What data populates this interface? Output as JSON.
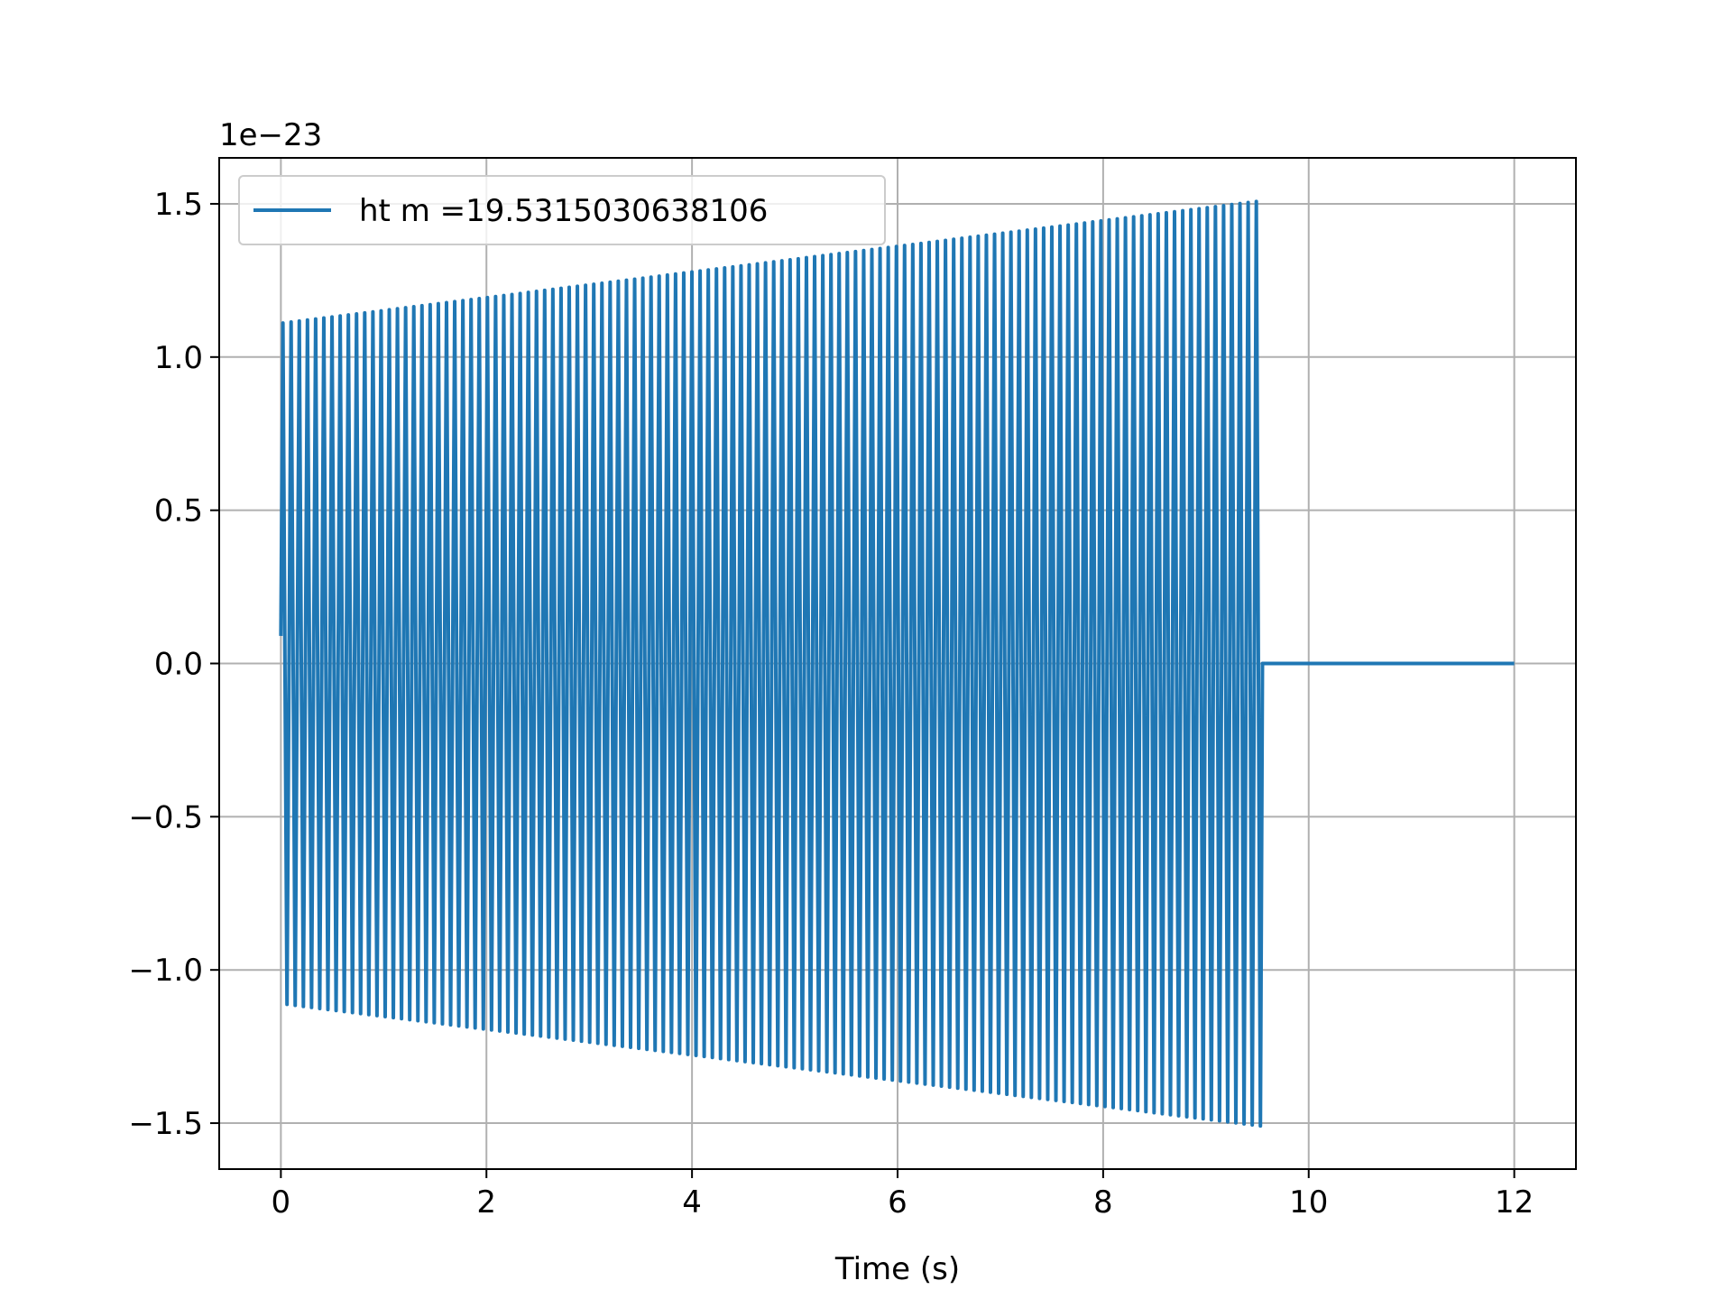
{
  "chart_data": {
    "type": "line",
    "title": "",
    "xlabel": "Time (s)",
    "ylabel": "",
    "y_offset_label": "1e−23",
    "xlim": [
      -0.6,
      12.6
    ],
    "ylim": [
      -1.65,
      1.65
    ],
    "xticks": [
      0,
      2,
      4,
      6,
      8,
      10,
      12
    ],
    "xtick_labels": [
      "0",
      "2",
      "4",
      "6",
      "8",
      "10",
      "12"
    ],
    "yticks": [
      -1.5,
      -1.0,
      -0.5,
      0.0,
      0.5,
      1.0,
      1.5
    ],
    "ytick_labels": [
      "−1.5",
      "−1.0",
      "−0.5",
      "0.0",
      "0.5",
      "1.0",
      "1.5"
    ],
    "grid": true,
    "legend_position": "upper-left",
    "series": [
      {
        "name": "ht m =19.5315030638106",
        "color": "#1f77b4",
        "signal": {
          "description_type": "chirp",
          "t_start": 0.0,
          "t_end_oscillation": 9.55,
          "t_end": 12.0,
          "initial_value": 0.09,
          "amplitude_start": 1.11,
          "amplitude_end": 1.51,
          "cycles": 120
        }
      }
    ]
  }
}
